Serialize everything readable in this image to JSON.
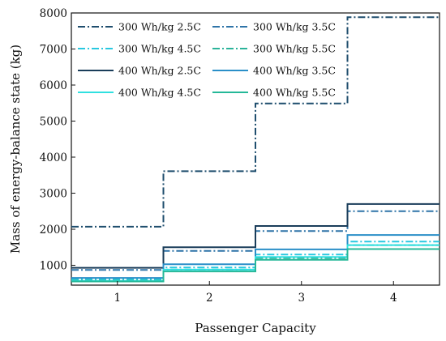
{
  "chart_data": {
    "type": "line",
    "step": true,
    "xlabel": "Passenger Capacity",
    "ylabel": "Mass of energy-balance state (kg)",
    "categories": [
      "1",
      "2",
      "3",
      "4"
    ],
    "x": [
      1,
      2,
      3,
      4
    ],
    "xlim": [
      0.5,
      4.5
    ],
    "ylim": [
      450,
      8000
    ],
    "yticks": [
      1000,
      2000,
      3000,
      4000,
      5000,
      6000,
      7000,
      8000
    ],
    "grid": false,
    "legend_position": "top-left",
    "legend_columns": 2,
    "series": [
      {
        "name": "300 Wh/kg 2.5C",
        "values": [
          2070,
          3610,
          5490,
          7880
        ],
        "color": "#1f4e6e",
        "dash": "dash-dot"
      },
      {
        "name": "300 Wh/kg 3.5C",
        "values": [
          870,
          1400,
          1950,
          2500
        ],
        "color": "#2f74a8",
        "dash": "dash-dot"
      },
      {
        "name": "300 Wh/kg 4.5C",
        "values": [
          610,
          940,
          1300,
          1660
        ],
        "color": "#28c8e0",
        "dash": "dash-dot"
      },
      {
        "name": "300 Wh/kg 5.5C",
        "values": [
          580,
          880,
          1200,
          1560
        ],
        "color": "#2bb39a",
        "dash": "dash-dot"
      },
      {
        "name": "400 Wh/kg 2.5C",
        "values": [
          930,
          1500,
          2090,
          2700
        ],
        "color": "#1a3d5a",
        "dash": "solid"
      },
      {
        "name": "400 Wh/kg 3.5C",
        "values": [
          650,
          1030,
          1440,
          1840
        ],
        "color": "#2a8fc8",
        "dash": "solid"
      },
      {
        "name": "400 Wh/kg 4.5C",
        "values": [
          570,
          880,
          1230,
          1560
        ],
        "color": "#30e0e0",
        "dash": "solid"
      },
      {
        "name": "400 Wh/kg 5.5C",
        "values": [
          550,
          830,
          1150,
          1450
        ],
        "color": "#25b898",
        "dash": "solid"
      }
    ]
  }
}
